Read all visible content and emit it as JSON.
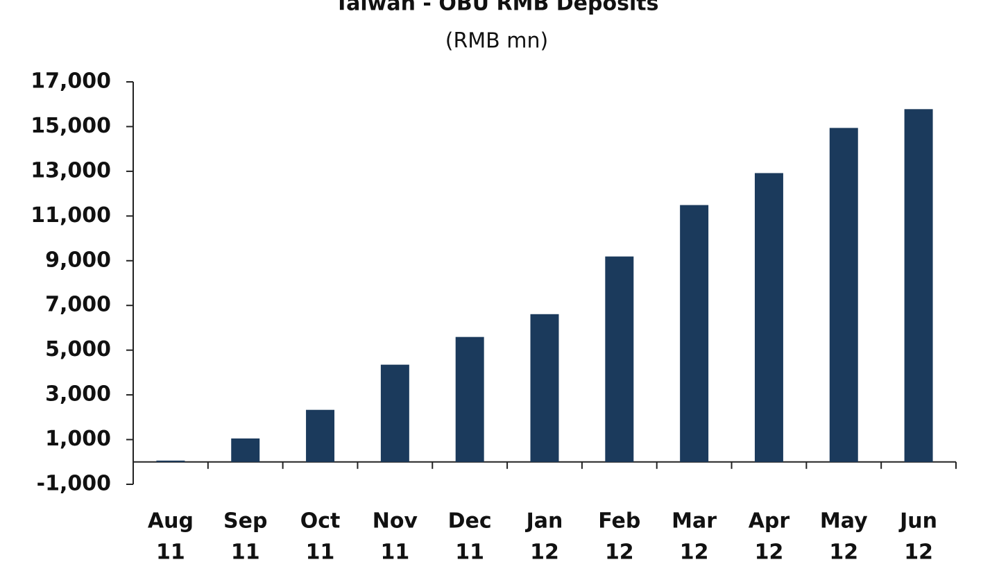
{
  "chart_data": {
    "type": "bar",
    "title": "Taiwan - OBU RMB Deposits",
    "subtitle": "(RMB mn)",
    "categories": [
      [
        "Aug",
        "11"
      ],
      [
        "Sep",
        "11"
      ],
      [
        "Oct",
        "11"
      ],
      [
        "Nov",
        "11"
      ],
      [
        "Dec",
        "11"
      ],
      [
        "Jan",
        "12"
      ],
      [
        "Feb",
        "12"
      ],
      [
        "Mar",
        "12"
      ],
      [
        "Apr",
        "12"
      ],
      [
        "May",
        "12"
      ],
      [
        "Jun",
        "12"
      ]
    ],
    "values": [
      60,
      1050,
      2330,
      4350,
      5590,
      6610,
      9190,
      11490,
      12920,
      14940,
      15780
    ],
    "color": "#1b3a5c",
    "ylim": [
      -1000,
      17000
    ],
    "yticks": [
      {
        "value": -1000,
        "label": "-1,000"
      },
      {
        "value": 1000,
        "label": "1,000"
      },
      {
        "value": 3000,
        "label": "3,000"
      },
      {
        "value": 5000,
        "label": "5,000"
      },
      {
        "value": 7000,
        "label": "7,000"
      },
      {
        "value": 9000,
        "label": "9,000"
      },
      {
        "value": 11000,
        "label": "11,000"
      },
      {
        "value": 13000,
        "label": "13,000"
      },
      {
        "value": 15000,
        "label": "15,000"
      },
      {
        "value": 17000,
        "label": "17,000"
      }
    ],
    "grid": false
  }
}
